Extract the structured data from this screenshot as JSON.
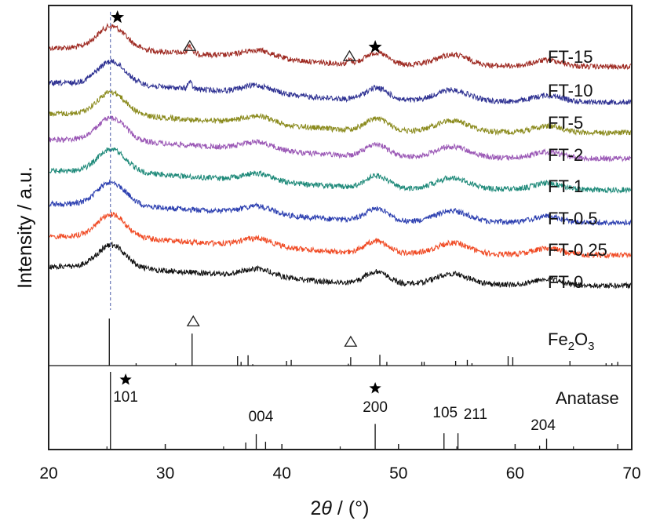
{
  "chart_data": {
    "type": "line",
    "title": "",
    "xlabel_prefix": "2",
    "xlabel_theta": "θ",
    "xlabel_suffix": " / (°)",
    "ylabel": "Intensity / a.u.",
    "xlim": [
      20,
      70
    ],
    "x_ticks": [
      "20",
      "30",
      "40",
      "50",
      "60",
      "70"
    ],
    "x_tick_values": [
      20,
      30,
      40,
      50,
      60,
      70
    ],
    "minor_tick_values": [
      25,
      35,
      45,
      55,
      65
    ],
    "reference_line_2theta": 25.3,
    "series": [
      {
        "name": "FT-15",
        "color": "#9e2a22",
        "offset": 8,
        "extra_peaks": [
          {
            "x": 32.1,
            "h": 0.9
          },
          {
            "x": 45.8,
            "h": 0.4
          }
        ]
      },
      {
        "name": "FT-10",
        "color": "#2e3192",
        "offset": 7,
        "extra_peaks": [
          {
            "x": 32.1,
            "h": 0.7
          }
        ]
      },
      {
        "name": "FT-5",
        "color": "#8b8b1e",
        "offset": 6,
        "extra_peaks": []
      },
      {
        "name": "FT-2",
        "color": "#9b59b6",
        "offset": 5,
        "extra_peaks": []
      },
      {
        "name": "FT-1",
        "color": "#1f8a7a",
        "offset": 4,
        "extra_peaks": []
      },
      {
        "name": "FT-0.5",
        "color": "#2c3fb0",
        "offset": 3,
        "extra_peaks": []
      },
      {
        "name": "FT-0.25",
        "color": "#f04a24",
        "offset": 2,
        "extra_peaks": []
      },
      {
        "name": "FT-0",
        "color": "#111111",
        "offset": 1,
        "extra_peaks": []
      }
    ],
    "anatase_peaks_2theta": [
      25.3,
      37.8,
      48.0,
      54.5,
      62.7
    ],
    "markers": [
      {
        "type": "star",
        "x": 25.9,
        "label": "anatase"
      },
      {
        "type": "triangle",
        "x": 32.1,
        "label": "Fe2O3"
      },
      {
        "type": "triangle",
        "x": 45.8,
        "label": "Fe2O3"
      },
      {
        "type": "star",
        "x": 48.0,
        "label": "anatase"
      }
    ],
    "reference_patterns": [
      {
        "name": "Fe2O3",
        "label_main": "Fe",
        "label_sub1": "2",
        "label_mid": "O",
        "label_sub2": "3",
        "sticks": [
          {
            "x": 25.2,
            "h": 1.0
          },
          {
            "x": 27.5,
            "h": 0.05
          },
          {
            "x": 30.9,
            "h": 0.05
          },
          {
            "x": 32.3,
            "h": 0.68
          },
          {
            "x": 36.2,
            "h": 0.2
          },
          {
            "x": 36.5,
            "h": 0.08
          },
          {
            "x": 37.1,
            "h": 0.22
          },
          {
            "x": 37.5,
            "h": 0.03
          },
          {
            "x": 40.4,
            "h": 0.1
          },
          {
            "x": 40.8,
            "h": 0.12
          },
          {
            "x": 45.7,
            "h": 0.04
          },
          {
            "x": 45.9,
            "h": 0.18
          },
          {
            "x": 48.4,
            "h": 0.23
          },
          {
            "x": 49.0,
            "h": 0.08
          },
          {
            "x": 52.0,
            "h": 0.08
          },
          {
            "x": 52.2,
            "h": 0.08
          },
          {
            "x": 54.9,
            "h": 0.1
          },
          {
            "x": 55.9,
            "h": 0.12
          },
          {
            "x": 56.3,
            "h": 0.05
          },
          {
            "x": 59.4,
            "h": 0.2
          },
          {
            "x": 59.8,
            "h": 0.18
          },
          {
            "x": 64.7,
            "h": 0.1
          },
          {
            "x": 67.8,
            "h": 0.05
          },
          {
            "x": 68.3,
            "h": 0.05
          },
          {
            "x": 68.8,
            "h": 0.08
          }
        ]
      },
      {
        "name": "Anatase",
        "label_main": "Anatase",
        "sticks": [
          {
            "x": 25.3,
            "h": 1.0
          },
          {
            "x": 36.9,
            "h": 0.09
          },
          {
            "x": 37.8,
            "h": 0.2
          },
          {
            "x": 38.6,
            "h": 0.1
          },
          {
            "x": 48.0,
            "h": 0.33
          },
          {
            "x": 53.9,
            "h": 0.21
          },
          {
            "x": 55.1,
            "h": 0.21
          },
          {
            "x": 62.1,
            "h": 0.05
          },
          {
            "x": 62.7,
            "h": 0.14
          },
          {
            "x": 68.8,
            "h": 0.07
          }
        ],
        "hkl_labels": [
          {
            "x": 26.6,
            "text": "101"
          },
          {
            "x": 38.2,
            "text": "004"
          },
          {
            "x": 48.0,
            "text": "200"
          },
          {
            "x": 54.0,
            "text": "105"
          },
          {
            "x": 56.6,
            "text": "211"
          },
          {
            "x": 62.4,
            "text": "204"
          }
        ]
      }
    ]
  }
}
